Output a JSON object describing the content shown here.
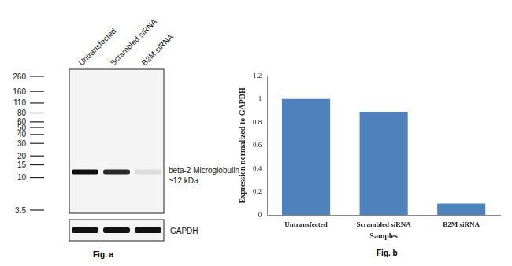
{
  "chart_data": {
    "type": "bar",
    "caption": "Fig. b",
    "categories": [
      "Untransfected",
      "Scrambled siRNA",
      "B2M siRNA"
    ],
    "values": [
      1,
      0.89,
      0.1
    ],
    "color": "#4f81bd",
    "x_label": "Samples",
    "y_label": "Expression normalized to GAPDH",
    "ylim": [
      0,
      1.2
    ],
    "yticks": [
      0,
      0.2,
      0.4,
      0.6,
      0.8,
      1,
      1.2
    ],
    "grid": false
  },
  "western_blot": {
    "caption": "Fig. a",
    "lanes": [
      "Untransfected",
      "Scrambled siRNA",
      "B2M siRNA"
    ],
    "markers": [
      260,
      160,
      110,
      80,
      60,
      50,
      40,
      30,
      20,
      15,
      10,
      3.5
    ],
    "band_kda": 12,
    "band_label": [
      "beta-2 Microglobulin",
      "~12 kDa"
    ],
    "loading_control": "GAPDH"
  }
}
